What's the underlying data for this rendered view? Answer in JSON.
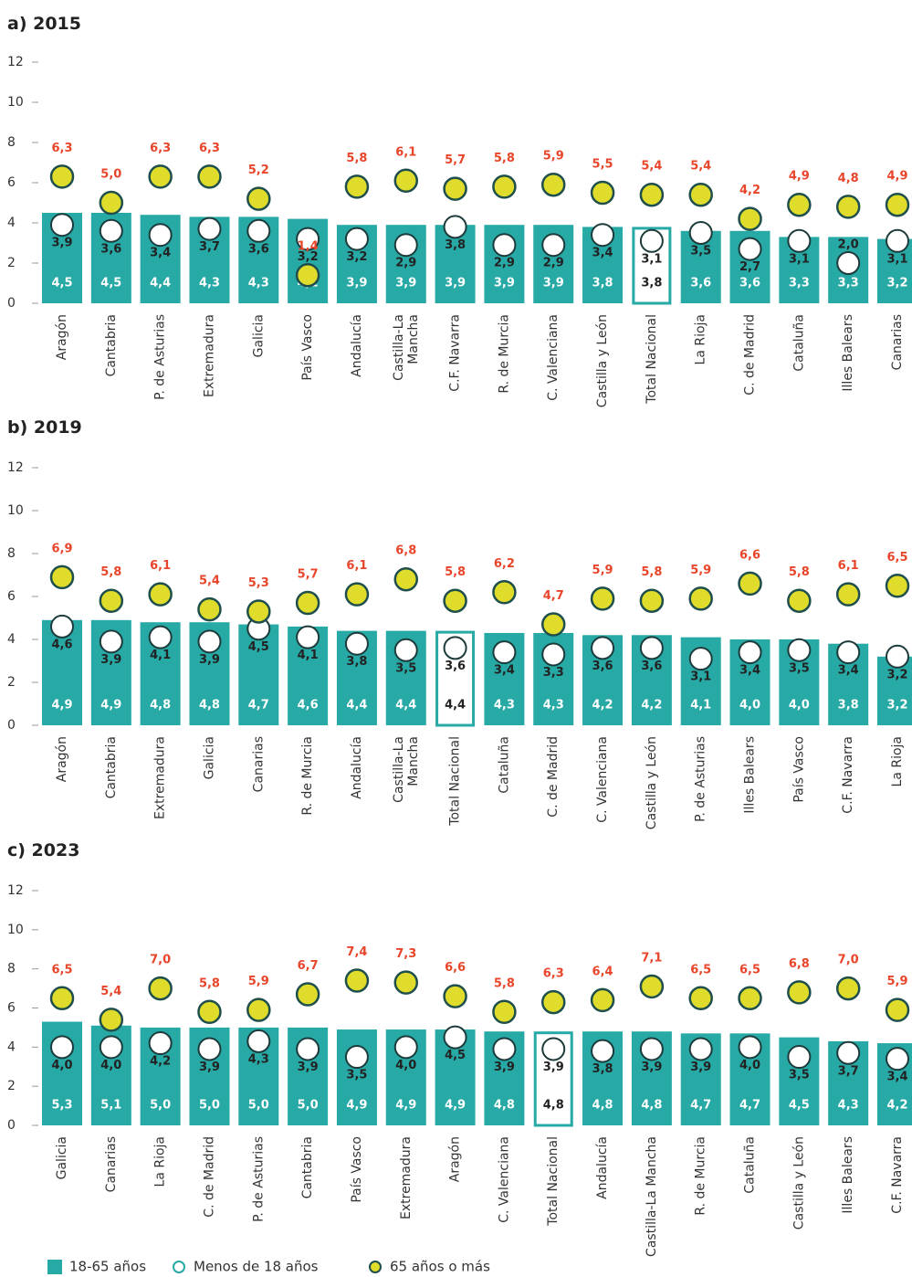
{
  "chart_data": [
    {
      "type": "bar",
      "title": "a) 2015",
      "ylim": [
        0,
        12
      ],
      "yticks": [
        0,
        2,
        4,
        6,
        8,
        10,
        12
      ],
      "highlight_index": 12,
      "categories": [
        "Aragón",
        "Cantabria",
        "P. de Asturias",
        "Extremadura",
        "Galicia",
        "País Vasco",
        "Andalucía",
        "Castilla-La Mancha",
        "C.F. Navarra",
        "R. de Murcia",
        "C. Valenciana",
        "Castilla y León",
        "Total Nacional",
        "La Rioja",
        "C. de Madrid",
        "Cataluña",
        "Illes Balears",
        "Canarias"
      ],
      "series": [
        {
          "name": "18-65 años",
          "color": "#27a9a6",
          "values": [
            4.5,
            4.5,
            4.4,
            4.3,
            4.3,
            4.2,
            3.9,
            3.9,
            3.9,
            3.9,
            3.9,
            3.8,
            3.8,
            3.6,
            3.6,
            3.3,
            3.3,
            3.2
          ],
          "value_labels": [
            "4,5",
            "4,5",
            "4,4",
            "4,3",
            "4,3",
            "4,2",
            "3,9",
            "3,9",
            "3,9",
            "3,9",
            "3,9",
            "3,8",
            "3,8",
            "3,6",
            "3,6",
            "3,3",
            "3,3",
            "3,2"
          ]
        },
        {
          "name": "Menos de 18 años",
          "color": "#ffffff",
          "values": [
            3.9,
            3.6,
            3.4,
            3.7,
            3.6,
            3.2,
            3.2,
            2.9,
            3.8,
            2.9,
            2.9,
            3.4,
            3.1,
            3.5,
            2.7,
            3.1,
            2.0,
            3.1
          ],
          "value_labels": [
            "3,9",
            "3,6",
            "3,4",
            "3,7",
            "3,6",
            "3,2",
            "3,2",
            "2,9",
            "3,8",
            "2,9",
            "2,9",
            "3,4",
            "3,1",
            "3,5",
            "2,7",
            "3,1",
            "2,0",
            "3,1"
          ]
        },
        {
          "name": "65 años o más",
          "color": "#dfdc2b",
          "values": [
            6.3,
            5.0,
            6.3,
            6.3,
            5.2,
            1.4,
            5.8,
            6.1,
            5.7,
            5.8,
            5.9,
            5.5,
            5.4,
            5.4,
            4.2,
            4.9,
            4.8,
            4.9
          ],
          "value_labels": [
            "6,3",
            "5,0",
            "6,3",
            "6,3",
            "5,2",
            "1,4",
            "5,8",
            "6,1",
            "5,7",
            "5,8",
            "5,9",
            "5,5",
            "5,4",
            "5,4",
            "4,2",
            "4,9",
            "4,8",
            "4,9"
          ]
        }
      ]
    },
    {
      "type": "bar",
      "title": "b) 2019",
      "ylim": [
        0,
        12
      ],
      "yticks": [
        0,
        2,
        4,
        6,
        8,
        10,
        12
      ],
      "highlight_index": 8,
      "categories": [
        "Aragón",
        "Cantabria",
        "Extremadura",
        "Galicia",
        "Canarias",
        "R. de Murcia",
        "Andalucía",
        "Castilla-La Mancha",
        "Total Nacional",
        "Cataluña",
        "C. de Madrid",
        "C. Valenciana",
        "Castilla y León",
        "P. de Asturias",
        "Illes Balears",
        "País Vasco",
        "C.F. Navarra",
        "La Rioja"
      ],
      "series": [
        {
          "name": "18-65 años",
          "color": "#27a9a6",
          "values": [
            4.9,
            4.9,
            4.8,
            4.8,
            4.7,
            4.6,
            4.4,
            4.4,
            4.4,
            4.3,
            4.3,
            4.2,
            4.2,
            4.1,
            4.0,
            4.0,
            3.8,
            3.2
          ],
          "value_labels": [
            "4,9",
            "4,9",
            "4,8",
            "4,8",
            "4,7",
            "4,6",
            "4,4",
            "4,4",
            "4,4",
            "4,3",
            "4,3",
            "4,2",
            "4,2",
            "4,1",
            "4,0",
            "4,0",
            "3,8",
            "3,2"
          ]
        },
        {
          "name": "Menos de 18 años",
          "color": "#ffffff",
          "values": [
            4.6,
            3.9,
            4.1,
            3.9,
            4.5,
            4.1,
            3.8,
            3.5,
            3.6,
            3.4,
            3.3,
            3.6,
            3.6,
            3.1,
            3.4,
            3.5,
            3.4,
            3.2
          ],
          "value_labels": [
            "4,6",
            "3,9",
            "4,1",
            "3,9",
            "4,5",
            "4,1",
            "3,8",
            "3,5",
            "3,6",
            "3,4",
            "3,3",
            "3,6",
            "3,6",
            "3,1",
            "3,4",
            "3,5",
            "3,4",
            "3,2"
          ]
        },
        {
          "name": "65 años o más",
          "color": "#dfdc2b",
          "values": [
            6.9,
            5.8,
            6.1,
            5.4,
            5.3,
            5.7,
            6.1,
            6.8,
            5.8,
            6.2,
            4.7,
            5.9,
            5.8,
            5.9,
            6.6,
            5.8,
            6.1,
            6.5
          ],
          "value_labels": [
            "6,9",
            "5,8",
            "6,1",
            "5,4",
            "5,3",
            "5,7",
            "6,1",
            "6,8",
            "5,8",
            "6,2",
            "4,7",
            "5,9",
            "5,8",
            "5,9",
            "6,6",
            "5,8",
            "6,1",
            "6,5"
          ]
        }
      ]
    },
    {
      "type": "bar",
      "title": "c) 2023",
      "ylim": [
        0,
        12
      ],
      "yticks": [
        0,
        2,
        4,
        6,
        8,
        10,
        12
      ],
      "highlight_index": 10,
      "categories": [
        "Galicia",
        "Canarias",
        "La Rioja",
        "C. de Madrid",
        "P. de Asturias",
        "Cantabria",
        "País Vasco",
        "Extremadura",
        "Aragón",
        "C. Valenciana",
        "Total Nacional",
        "Andalucía",
        "Castilla-La Mancha",
        "R. de Murcia",
        "Cataluña",
        "Castilla y León",
        "Illes Balears",
        "C.F. Navarra"
      ],
      "series": [
        {
          "name": "18-65 años",
          "color": "#27a9a6",
          "values": [
            5.3,
            5.1,
            5.0,
            5.0,
            5.0,
            5.0,
            4.9,
            4.9,
            4.9,
            4.8,
            4.8,
            4.8,
            4.8,
            4.7,
            4.7,
            4.5,
            4.3,
            4.2
          ],
          "value_labels": [
            "5,3",
            "5,1",
            "5,0",
            "5,0",
            "5,0",
            "5,0",
            "4,9",
            "4,9",
            "4,9",
            "4,8",
            "4,8",
            "4,8",
            "4,8",
            "4,7",
            "4,7",
            "4,5",
            "4,3",
            "4,2"
          ]
        },
        {
          "name": "Menos de 18 años",
          "color": "#ffffff",
          "values": [
            4.0,
            4.0,
            4.2,
            3.9,
            4.3,
            3.9,
            3.5,
            4.0,
            4.5,
            3.9,
            3.9,
            3.8,
            3.9,
            3.9,
            4.0,
            3.5,
            3.7,
            3.4
          ],
          "value_labels": [
            "4,0",
            "4,0",
            "4,2",
            "3,9",
            "4,3",
            "3,9",
            "3,5",
            "4,0",
            "4,5",
            "3,9",
            "3,9",
            "3,8",
            "3,9",
            "3,9",
            "4,0",
            "3,5",
            "3,7",
            "3,4"
          ]
        },
        {
          "name": "65 años o más",
          "color": "#dfdc2b",
          "values": [
            6.5,
            5.4,
            7.0,
            5.8,
            5.9,
            6.7,
            7.4,
            7.3,
            6.6,
            5.8,
            6.3,
            6.4,
            7.1,
            6.5,
            6.5,
            6.8,
            7.0,
            5.9
          ],
          "value_labels": [
            "6,5",
            "5,4",
            "7,0",
            "5,8",
            "5,9",
            "6,7",
            "7,4",
            "7,3",
            "6,6",
            "5,8",
            "6,3",
            "6,4",
            "7,1",
            "6,5",
            "6,5",
            "6,8",
            "7,0",
            "5,9"
          ]
        }
      ]
    }
  ]
}
